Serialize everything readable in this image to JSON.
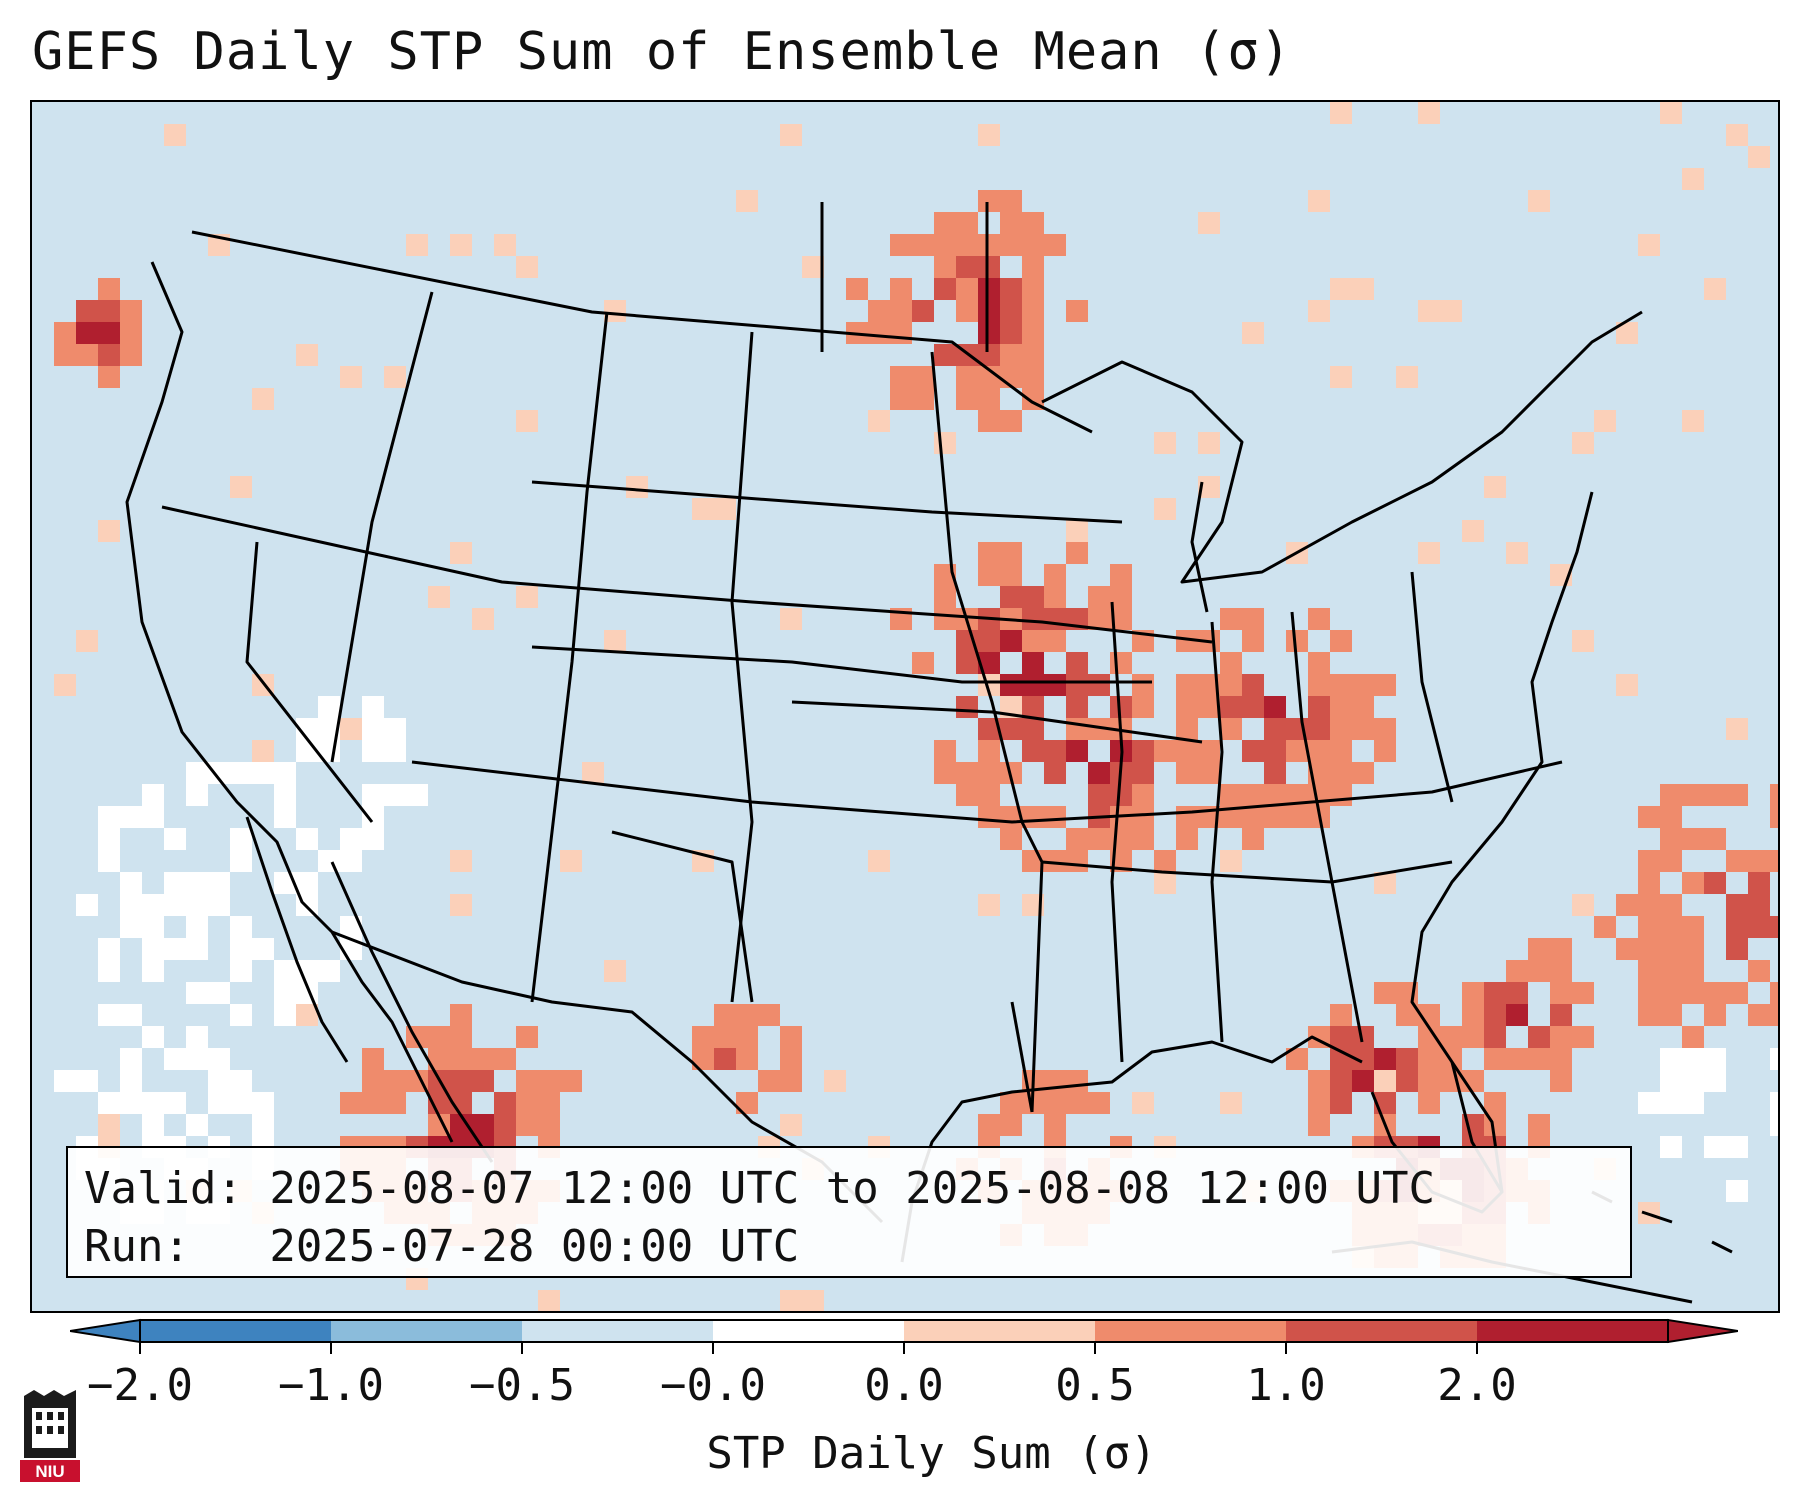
{
  "title": "GEFS Daily STP Sum of Ensemble Mean (σ)",
  "info": {
    "valid_line": "Valid: 2025-08-07 12:00 UTC to 2025-08-08 12:00 UTC",
    "run_line": "Run:   2025-07-28 00:00 UTC"
  },
  "colorbar": {
    "label": "STP Daily Sum (σ)",
    "ticks": [
      "−2.0",
      "−1.0",
      "−0.5",
      "−0.0",
      "0.0",
      "0.5",
      "1.0",
      "2.0"
    ],
    "colors": [
      "#3e83bf",
      "#8bbcdb",
      "#cfe3ef",
      "#ffffff",
      "#fbd0b9",
      "#ef8b6c",
      "#d0534a",
      "#b01f2f"
    ],
    "extend": "both"
  },
  "map": {
    "ocean_color": "#cfe3ef",
    "region": "Continental United States"
  },
  "logo": {
    "text": "NIU",
    "color": "#c8102e"
  }
}
